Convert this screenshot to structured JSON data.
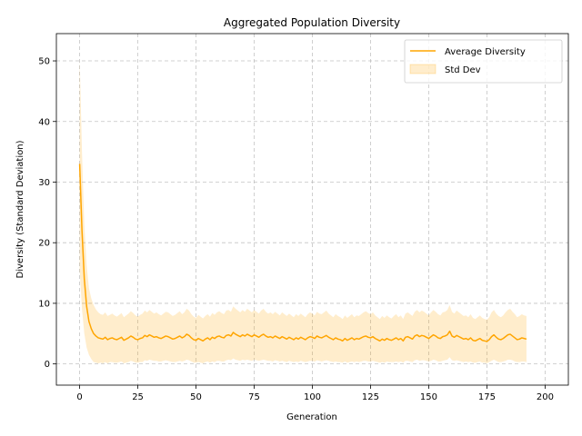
{
  "chart_data": {
    "type": "line",
    "title": "Aggregated Population Diversity",
    "xlabel": "Generation",
    "ylabel": "Diversity (Standard Deviation)",
    "xlim": [
      -10,
      210
    ],
    "ylim": [
      -3.5,
      54.5
    ],
    "xticks": [
      0,
      25,
      50,
      75,
      100,
      125,
      150,
      175,
      200
    ],
    "yticks": [
      0,
      10,
      20,
      30,
      40,
      50
    ],
    "grid": true,
    "legend_position": "top-right",
    "colors": {
      "line": "#ffa500",
      "band": "#ffa500"
    },
    "series": [
      {
        "name": "Average Diversity",
        "kind": "line",
        "x_start": 0,
        "x_step": 1,
        "values": [
          33.0,
          22.0,
          14.0,
          9.5,
          7.0,
          5.8,
          5.0,
          4.6,
          4.3,
          4.2,
          4.1,
          4.4,
          4.0,
          4.2,
          4.3,
          4.1,
          4.0,
          4.2,
          4.4,
          3.9,
          4.1,
          4.3,
          4.6,
          4.4,
          4.1,
          4.0,
          4.2,
          4.3,
          4.7,
          4.5,
          4.8,
          4.6,
          4.4,
          4.5,
          4.3,
          4.2,
          4.4,
          4.6,
          4.5,
          4.3,
          4.1,
          4.2,
          4.4,
          4.6,
          4.3,
          4.5,
          4.9,
          4.7,
          4.3,
          4.0,
          3.9,
          4.2,
          4.0,
          3.8,
          4.1,
          4.3,
          4.0,
          4.4,
          4.2,
          4.5,
          4.6,
          4.4,
          4.3,
          4.7,
          4.8,
          4.6,
          5.2,
          4.9,
          4.7,
          4.5,
          4.8,
          4.6,
          4.9,
          4.7,
          4.5,
          4.8,
          4.6,
          4.4,
          4.7,
          4.9,
          4.6,
          4.4,
          4.5,
          4.3,
          4.6,
          4.4,
          4.2,
          4.5,
          4.3,
          4.1,
          4.4,
          4.2,
          4.0,
          4.3,
          4.1,
          4.4,
          4.2,
          4.0,
          4.3,
          4.5,
          4.4,
          4.2,
          4.6,
          4.4,
          4.3,
          4.5,
          4.7,
          4.4,
          4.2,
          4.0,
          4.3,
          4.1,
          4.0,
          3.8,
          4.2,
          3.9,
          4.1,
          4.3,
          4.0,
          4.2,
          4.1,
          4.3,
          4.5,
          4.6,
          4.4,
          4.3,
          4.5,
          4.2,
          4.0,
          3.8,
          4.1,
          3.9,
          4.2,
          4.0,
          3.9,
          4.1,
          4.3,
          4.0,
          4.2,
          3.8,
          4.4,
          4.5,
          4.3,
          4.1,
          4.6,
          4.8,
          4.5,
          4.7,
          4.6,
          4.4,
          4.2,
          4.5,
          4.8,
          4.6,
          4.3,
          4.2,
          4.5,
          4.6,
          4.8,
          5.4,
          4.6,
          4.4,
          4.7,
          4.5,
          4.3,
          4.1,
          4.2,
          4.0,
          4.3,
          3.9,
          3.8,
          4.0,
          4.2,
          3.9,
          3.8,
          3.7,
          4.0,
          4.5,
          4.8,
          4.4,
          4.1,
          4.0,
          4.2,
          4.5,
          4.8,
          4.9,
          4.6,
          4.3,
          4.0,
          4.1,
          4.3,
          4.2,
          4.1
        ]
      },
      {
        "name": "Std Dev",
        "kind": "band",
        "x_start": 0,
        "x_step": 1,
        "half_width": [
          17.5,
          13.0,
          9.0,
          6.8,
          5.5,
          5.0,
          4.7,
          4.4,
          4.2,
          4.0,
          4.0,
          4.1,
          3.9,
          3.9,
          4.0,
          3.9,
          3.8,
          3.9,
          4.0,
          3.8,
          3.9,
          4.0,
          4.1,
          4.0,
          3.9,
          3.8,
          3.9,
          4.0,
          4.1,
          4.0,
          4.1,
          4.0,
          3.9,
          4.0,
          3.9,
          3.8,
          3.9,
          4.0,
          4.0,
          3.9,
          3.8,
          3.9,
          4.0,
          4.1,
          3.9,
          4.0,
          4.2,
          4.1,
          3.9,
          3.8,
          3.7,
          3.9,
          3.8,
          3.7,
          3.8,
          3.9,
          3.8,
          4.0,
          3.9,
          4.0,
          4.1,
          4.0,
          3.9,
          4.1,
          4.1,
          4.0,
          4.3,
          4.2,
          4.1,
          4.0,
          4.1,
          4.0,
          4.2,
          4.1,
          4.0,
          4.1,
          4.0,
          3.9,
          4.1,
          4.2,
          4.0,
          3.9,
          4.0,
          3.9,
          4.0,
          3.9,
          3.8,
          4.0,
          3.9,
          3.8,
          3.9,
          3.8,
          3.7,
          3.9,
          3.8,
          3.9,
          3.8,
          3.7,
          3.9,
          4.0,
          3.9,
          3.8,
          4.0,
          3.9,
          3.9,
          4.0,
          4.1,
          3.9,
          3.8,
          3.7,
          3.9,
          3.8,
          3.7,
          3.6,
          3.8,
          3.7,
          3.8,
          3.9,
          3.7,
          3.8,
          3.8,
          3.9,
          4.0,
          4.1,
          4.0,
          3.9,
          4.0,
          3.8,
          3.7,
          3.6,
          3.8,
          3.7,
          3.8,
          3.7,
          3.6,
          3.8,
          3.9,
          3.7,
          3.8,
          3.6,
          3.9,
          4.0,
          3.9,
          3.8,
          4.0,
          4.1,
          4.0,
          4.1,
          4.0,
          3.9,
          3.8,
          4.0,
          4.1,
          4.0,
          3.9,
          3.8,
          4.0,
          4.0,
          4.1,
          4.3,
          4.0,
          3.9,
          4.1,
          4.0,
          3.9,
          3.8,
          3.8,
          3.7,
          3.9,
          3.7,
          3.6,
          3.7,
          3.8,
          3.7,
          3.6,
          3.6,
          3.7,
          4.0,
          4.1,
          3.9,
          3.8,
          3.7,
          3.8,
          4.0,
          4.1,
          4.2,
          4.0,
          3.9,
          3.7,
          3.8,
          3.9,
          3.8,
          3.8
        ]
      }
    ]
  }
}
